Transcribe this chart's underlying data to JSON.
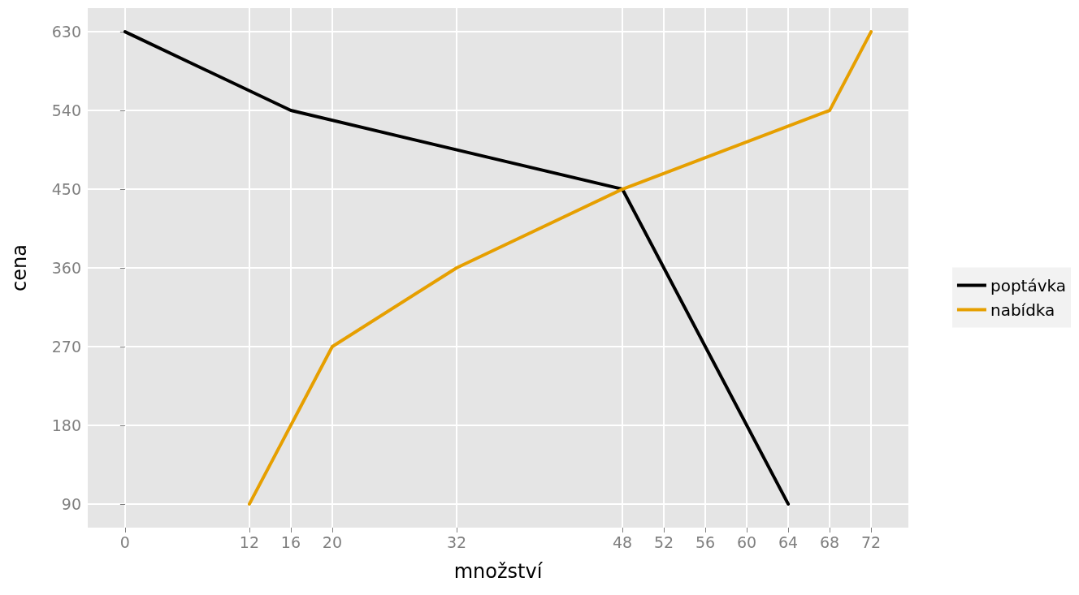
{
  "chart_data": {
    "type": "line",
    "xlabel": "množství",
    "ylabel": "cena",
    "xlim": [
      -3.6,
      75.6
    ],
    "xticks": [
      0,
      12,
      16,
      20,
      32,
      48,
      52,
      56,
      60,
      64,
      68,
      72
    ],
    "ylim": [
      63,
      657
    ],
    "yticks": [
      90,
      180,
      270,
      360,
      450,
      540,
      630
    ],
    "grid": true,
    "legend": "right",
    "marker": "none",
    "line_style": "solid",
    "series": [
      {
        "name": "poptávka",
        "color": "#000000",
        "x": [
          0,
          16,
          48,
          64
        ],
        "values": [
          630,
          540,
          450,
          90
        ]
      },
      {
        "name": "nabídka",
        "color": "#e69f00",
        "x": [
          12,
          20,
          32,
          48,
          68,
          72
        ],
        "values": [
          90,
          270,
          360,
          450,
          540,
          630
        ]
      }
    ]
  }
}
